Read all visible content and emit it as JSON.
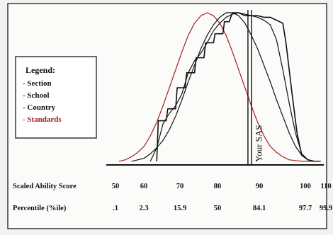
{
  "chart_data": {
    "type": "line",
    "title": "",
    "xlabel": "Scaled Ability Score",
    "ylabel": "",
    "xlim": [
      44,
      113
    ],
    "ylim": [
      0,
      1
    ],
    "grid": false,
    "legend_placement": "left",
    "legend": {
      "title": "Legend:",
      "entries": [
        {
          "label": "Section",
          "color": "#111111"
        },
        {
          "label": "School",
          "color": "#111111"
        },
        {
          "label": "Country",
          "color": "#111111"
        },
        {
          "label": "Standards",
          "color": "#a0221b"
        }
      ]
    },
    "score_row": {
      "label": "Scaled Ability Score",
      "ticks": [
        "50",
        "60",
        "70",
        "80",
        "90",
        "100",
        "110"
      ]
    },
    "percentile_row": {
      "label": "Percentile (%ile)",
      "values": [
        ".1",
        "2.3",
        "15.9",
        "50",
        "84.1",
        "97.7",
        "99.9"
      ]
    },
    "marker": {
      "label": "Your SAS",
      "x": 89.5
    },
    "series": [
      {
        "name": "Standards",
        "color": "#a0221b",
        "x": [
          48,
          50,
          52,
          54,
          56,
          58,
          60,
          62,
          64,
          66,
          68,
          70,
          72,
          74,
          76,
          78,
          80,
          82,
          84,
          86,
          88,
          90,
          92,
          94,
          96,
          98,
          100,
          102,
          104,
          106,
          108,
          110,
          112
        ],
        "y": [
          0.01,
          0.02,
          0.04,
          0.07,
          0.11,
          0.18,
          0.27,
          0.38,
          0.5,
          0.62,
          0.74,
          0.85,
          0.93,
          0.98,
          1.0,
          0.98,
          0.93,
          0.85,
          0.74,
          0.62,
          0.5,
          0.38,
          0.27,
          0.18,
          0.11,
          0.07,
          0.04,
          0.02,
          0.015,
          0.01,
          0.01,
          0.01,
          0.01
        ]
      },
      {
        "name": "Country",
        "color": "#111111",
        "x": [
          52,
          54,
          56,
          58,
          60,
          62,
          64,
          66,
          68,
          70,
          72,
          74,
          76,
          78,
          80,
          82,
          84,
          86,
          88,
          90,
          92,
          94,
          96,
          98,
          100,
          102,
          104,
          106,
          108,
          110,
          112
        ],
        "y": [
          0.01,
          0.02,
          0.03,
          0.06,
          0.1,
          0.15,
          0.22,
          0.31,
          0.42,
          0.54,
          0.65,
          0.76,
          0.85,
          0.92,
          0.97,
          1.0,
          1.0,
          0.98,
          0.93,
          0.85,
          0.76,
          0.65,
          0.54,
          0.42,
          0.31,
          0.2,
          0.11,
          0.05,
          0.02,
          0.01,
          0.01
        ]
      },
      {
        "name": "School",
        "color": "#111111",
        "x": [
          58,
          60,
          62,
          64,
          66,
          68,
          70,
          72,
          74,
          76,
          78,
          80,
          82,
          84,
          86,
          88,
          90,
          92,
          94,
          96,
          98,
          100,
          102,
          104,
          106,
          108,
          110
        ],
        "y": [
          0.01,
          0.1,
          0.26,
          0.33,
          0.38,
          0.46,
          0.6,
          0.68,
          0.73,
          0.8,
          0.88,
          0.93,
          0.97,
          0.99,
          1.0,
          0.99,
          0.98,
          0.97,
          0.95,
          0.92,
          0.82,
          0.62,
          0.4,
          0.2,
          0.06,
          0.02,
          0.01
        ]
      },
      {
        "name": "Section",
        "color": "#111111",
        "x": [
          60,
          60.5,
          63,
          63.5,
          66,
          66.5,
          69,
          69.5,
          72,
          72.5,
          75,
          75.5,
          78,
          78.5,
          81,
          81.5,
          83,
          84,
          86,
          88,
          90,
          92,
          94,
          96,
          98,
          100,
          101,
          103,
          104.5,
          106,
          108,
          110
        ],
        "y": [
          0.01,
          0.28,
          0.28,
          0.36,
          0.36,
          0.5,
          0.5,
          0.6,
          0.6,
          0.7,
          0.7,
          0.8,
          0.8,
          0.86,
          0.86,
          0.94,
          0.94,
          1.0,
          1.0,
          0.98,
          0.98,
          0.98,
          0.97,
          0.97,
          0.95,
          0.93,
          0.8,
          0.45,
          0.2,
          0.05,
          0.02,
          0.01
        ]
      }
    ]
  }
}
